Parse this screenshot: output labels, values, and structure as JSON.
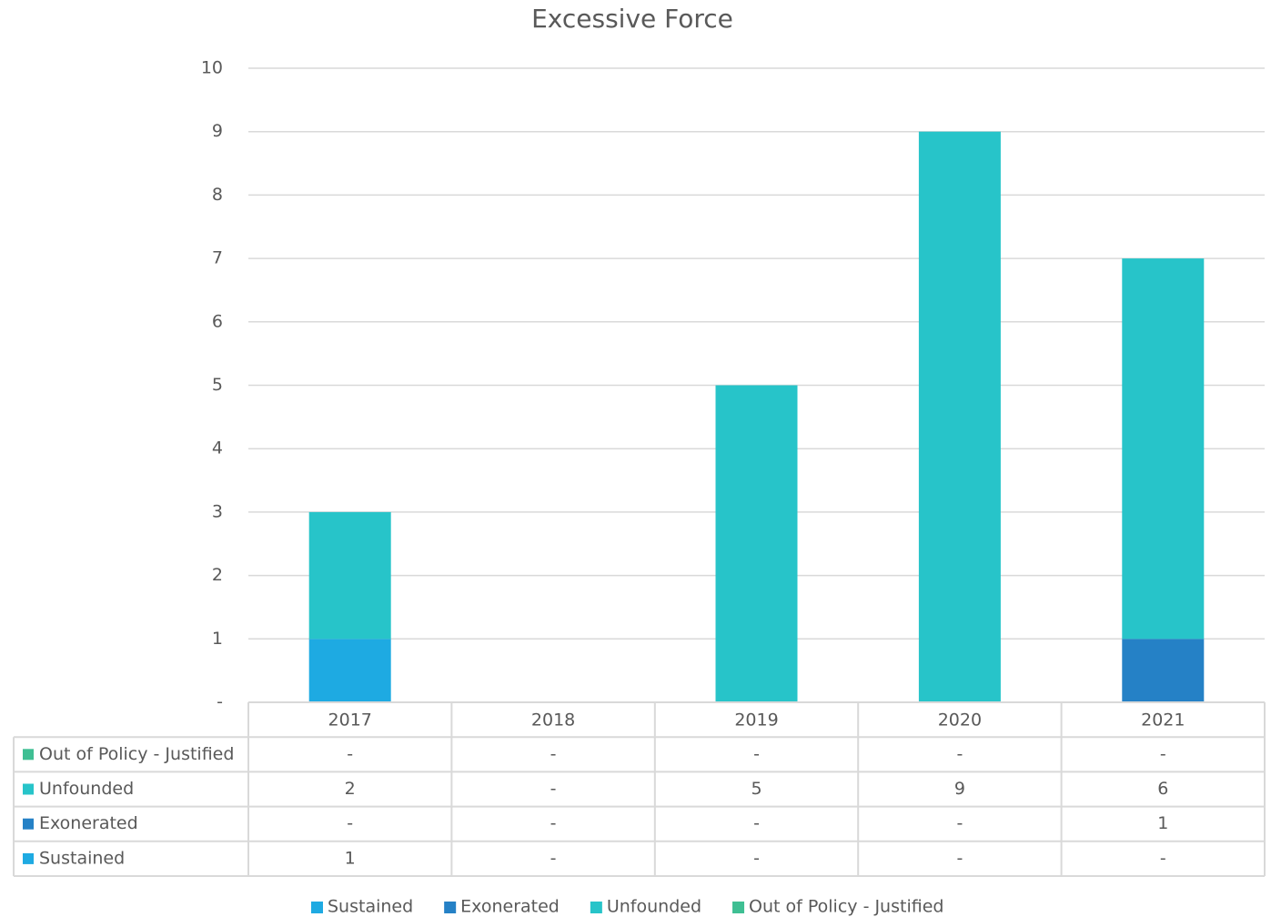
{
  "chart_data": {
    "type": "stacked_bar",
    "title": "Excessive Force",
    "categories": [
      "2017",
      "2018",
      "2019",
      "2020",
      "2021"
    ],
    "series": [
      {
        "name": "Sustained",
        "color": "#1eaae2",
        "values": [
          1,
          0,
          0,
          0,
          0
        ],
        "value_labels": [
          "1",
          "-",
          "-",
          "-",
          "-"
        ]
      },
      {
        "name": "Exonerated",
        "color": "#2581c6",
        "values": [
          0,
          0,
          0,
          0,
          1
        ],
        "value_labels": [
          "-",
          "-",
          "-",
          "-",
          "1"
        ]
      },
      {
        "name": "Unfounded",
        "color": "#27c4c9",
        "values": [
          2,
          0,
          5,
          9,
          6
        ],
        "value_labels": [
          "2",
          "-",
          "5",
          "9",
          "6"
        ]
      },
      {
        "name": "Out of Policy - Justified",
        "color": "#3fbf93",
        "values": [
          0,
          0,
          0,
          0,
          0
        ],
        "value_labels": [
          "-",
          "-",
          "-",
          "-",
          "-"
        ]
      }
    ],
    "ylim": [
      0,
      10
    ],
    "yticks": [
      {
        "value": 0,
        "label": "-"
      },
      1,
      2,
      3,
      4,
      5,
      6,
      7,
      8,
      9,
      10
    ],
    "grid": true,
    "legend": "bottom",
    "data_table": true
  }
}
